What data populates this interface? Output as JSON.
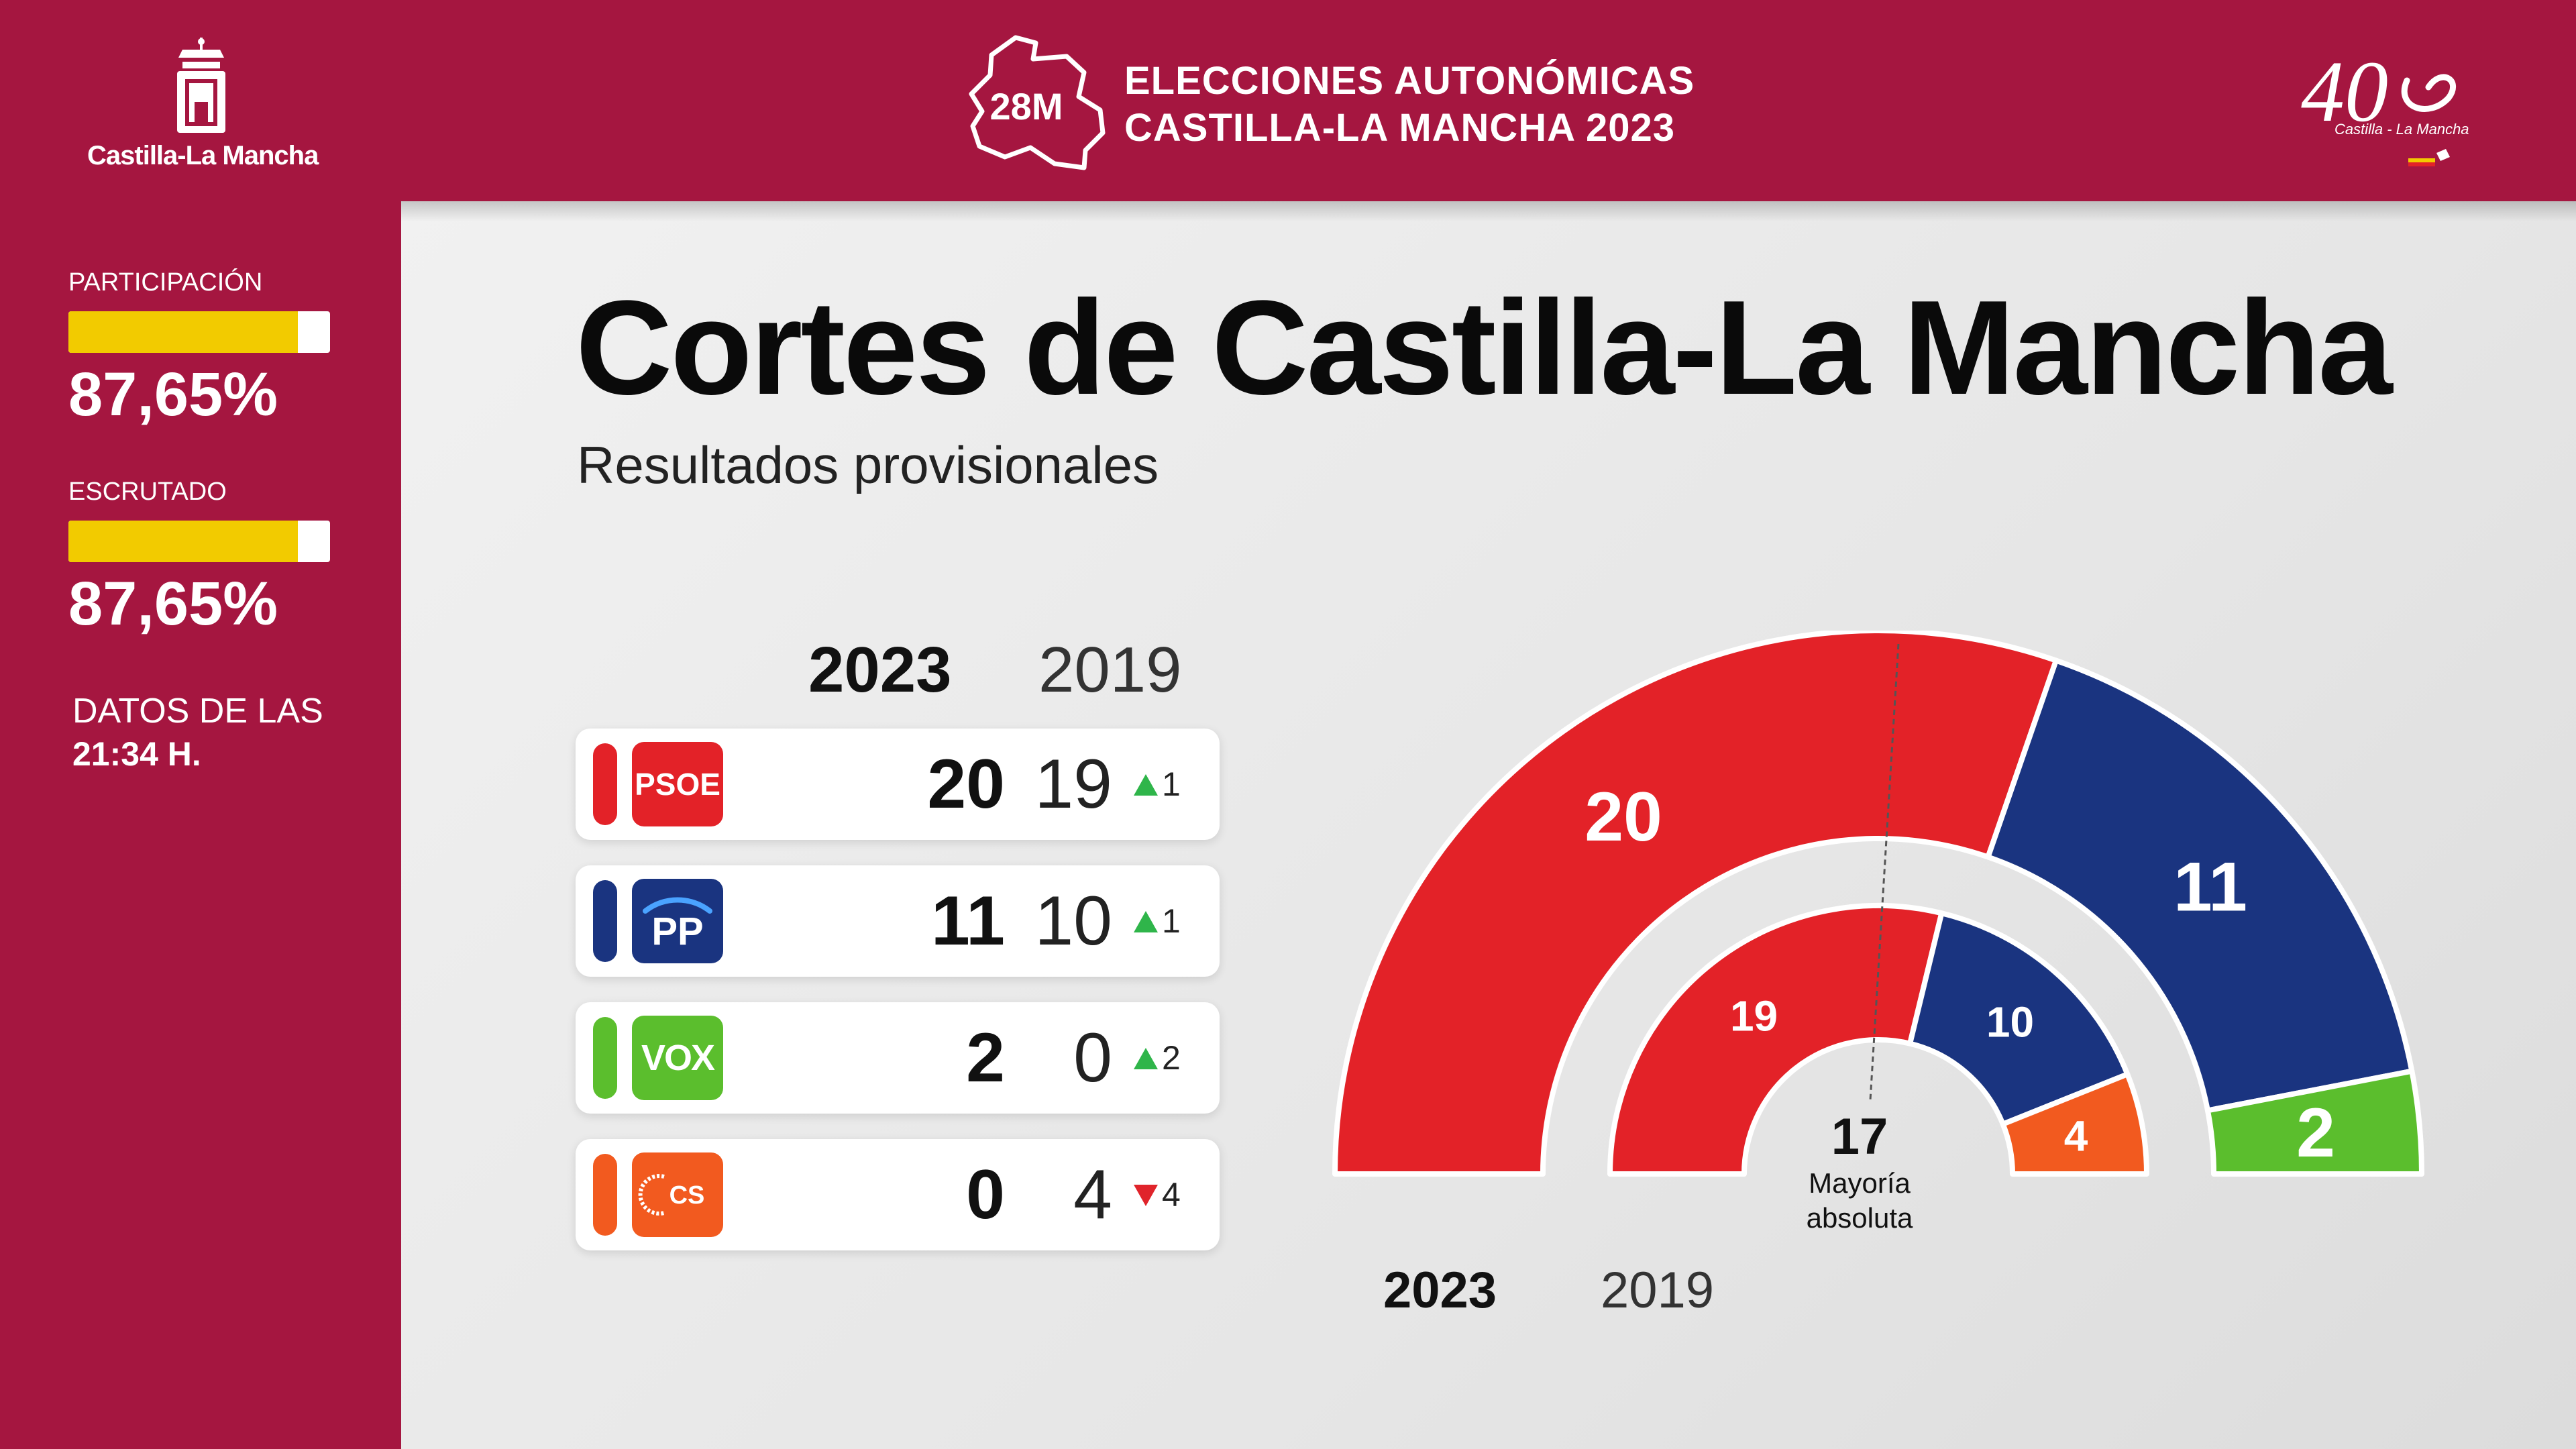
{
  "header": {
    "region_logo_label": "Castilla-La Mancha",
    "badge_text": "28M",
    "title_line1": "ELECCIONES AUTONÓMICAS",
    "title_line2": "CASTILLA-LA MANCHA 2023",
    "anniversary_logo_text": "40",
    "anniversary_logo_sub": "Castilla - La Mancha"
  },
  "sidebar": {
    "participacion": {
      "label": "PARTICIPACIÓN",
      "value": "87,65%",
      "fraction": 0.8765
    },
    "escrutado": {
      "label": "ESCRUTADO",
      "value": "87,65%",
      "fraction": 0.8765
    },
    "datos_label": "DATOS DE LAS",
    "datos_time": "21:34 H."
  },
  "main": {
    "title": "Cortes de Castilla-La Mancha",
    "subtitle": "Resultados provisionales",
    "col_current": "2023",
    "col_previous": "2019"
  },
  "parties": [
    {
      "name": "PSOE",
      "color": "#e32228",
      "seats_2023": "20",
      "seats_2019": "19",
      "trend": "up",
      "delta": "1"
    },
    {
      "name": "PP",
      "color": "#1a3480",
      "seats_2023": "11",
      "seats_2019": "10",
      "trend": "up",
      "delta": "1"
    },
    {
      "name": "VOX",
      "color": "#5bbe2d",
      "seats_2023": "2",
      "seats_2019": "0",
      "trend": "up",
      "delta": "2"
    },
    {
      "name": "CS",
      "color": "#f25a1f",
      "seats_2023": "0",
      "seats_2019": "4",
      "trend": "down",
      "delta": "4"
    }
  ],
  "hemicycle": {
    "majority_value": "17",
    "majority_label_line1": "Mayoría",
    "majority_label_line2": "absoluta",
    "label_2023": "2023",
    "label_2019": "2019",
    "outer_2023": [
      {
        "party": "PSOE",
        "seats": 20,
        "label": "20",
        "color": "#e32228"
      },
      {
        "party": "PP",
        "seats": 11,
        "label": "11",
        "color": "#1a3480"
      },
      {
        "party": "VOX",
        "seats": 2,
        "label": "2",
        "color": "#5bbe2d"
      }
    ],
    "inner_2019": [
      {
        "party": "PSOE",
        "seats": 19,
        "label": "19",
        "color": "#e32228"
      },
      {
        "party": "PP",
        "seats": 10,
        "label": "10",
        "color": "#1a3480"
      },
      {
        "party": "CS",
        "seats": 4,
        "label": "4",
        "color": "#f25a1f"
      }
    ]
  },
  "colors": {
    "brand": "#a51640",
    "progress": "#f2cb00",
    "up": "#2fb54a",
    "down": "#e0242b"
  }
}
